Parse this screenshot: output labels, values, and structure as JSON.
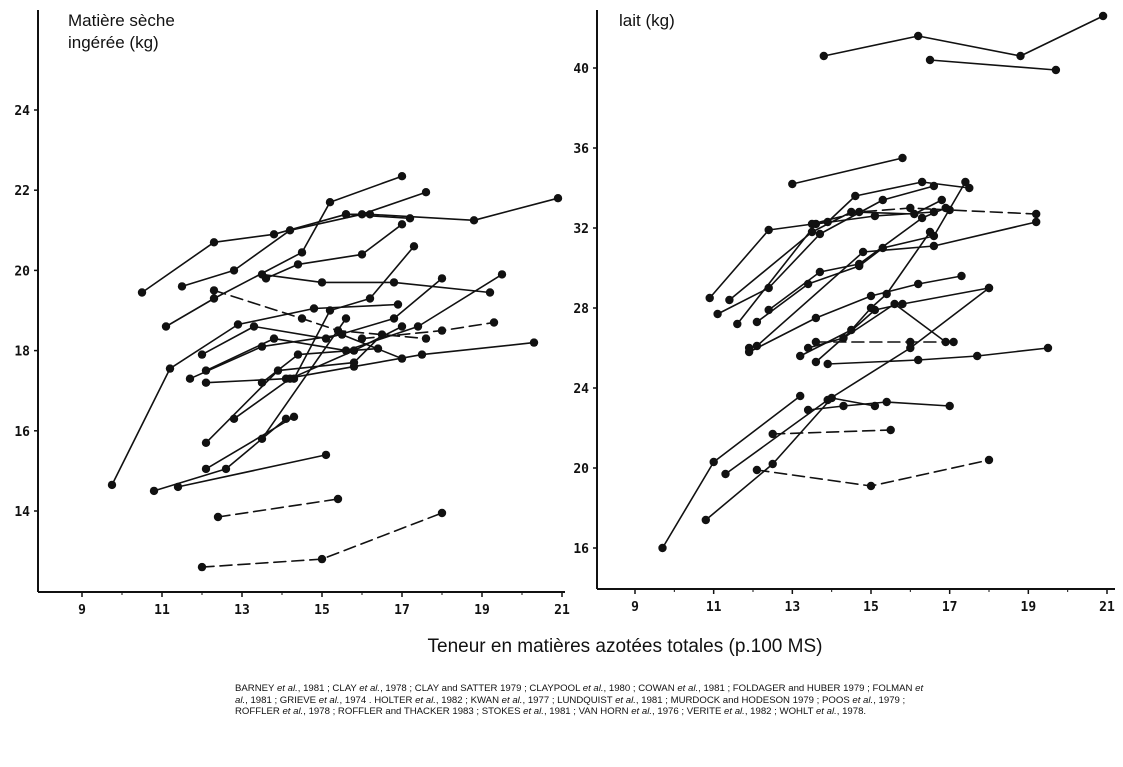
{
  "chart_data": [
    {
      "type": "line",
      "ylabel_lines": [
        "Matière sèche",
        "ingérée (kg)"
      ],
      "x_ticks": [
        9,
        11,
        13,
        15,
        17,
        19,
        21
      ],
      "y_ticks": [
        14,
        16,
        18,
        20,
        22,
        24
      ],
      "xlim": [
        8.0,
        21.0
      ],
      "ylim": [
        12.0,
        25.2
      ],
      "grid": false,
      "legend": "none",
      "series": [
        {
          "dash": false,
          "x": [
            9.75,
            11.2,
            12.9,
            14.8,
            16.9
          ],
          "y": [
            14.65,
            17.55,
            18.65,
            19.05,
            19.15
          ]
        },
        {
          "dash": false,
          "x": [
            10.5,
            12.3,
            13.8,
            15.6,
            17.2
          ],
          "y": [
            19.45,
            20.7,
            20.9,
            21.4,
            21.3
          ]
        },
        {
          "dash": false,
          "x": [
            11.1,
            12.3,
            14.5,
            15.2,
            17.0
          ],
          "y": [
            18.6,
            19.3,
            20.45,
            21.7,
            22.35
          ]
        },
        {
          "dash": false,
          "x": [
            11.5,
            12.8,
            14.2,
            16.0,
            17.6
          ],
          "y": [
            19.6,
            20.0,
            21.0,
            21.4,
            21.95
          ]
        },
        {
          "dash": false,
          "x": [
            15.6,
            16.2,
            18.8,
            20.9
          ],
          "y": [
            21.4,
            21.4,
            21.25,
            21.8
          ]
        },
        {
          "dash": false,
          "x": [
            13.6,
            14.4,
            16.0,
            17.0
          ],
          "y": [
            19.8,
            20.15,
            20.4,
            21.15
          ]
        },
        {
          "dash": true,
          "x": [
            12.3,
            14.5,
            15.4,
            17.6
          ],
          "y": [
            19.5,
            18.8,
            18.5,
            18.3
          ]
        },
        {
          "dash": false,
          "x": [
            13.5,
            15.0,
            16.8,
            19.2
          ],
          "y": [
            19.9,
            19.7,
            19.7,
            19.45
          ]
        },
        {
          "dash": false,
          "x": [
            14.3,
            15.2,
            16.2,
            17.3
          ],
          "y": [
            17.3,
            19.0,
            19.3,
            20.6
          ]
        },
        {
          "dash": false,
          "x": [
            12.0,
            13.3,
            15.1,
            16.8,
            18.0
          ],
          "y": [
            17.9,
            18.6,
            18.3,
            18.8,
            19.8
          ]
        },
        {
          "dash": false,
          "x": [
            12.1,
            13.8,
            15.6,
            17.4,
            19.5
          ],
          "y": [
            17.5,
            18.3,
            18.0,
            18.6,
            19.9
          ]
        },
        {
          "dash": false,
          "x": [
            11.7,
            13.5,
            15.5,
            17.0
          ],
          "y": [
            17.3,
            18.1,
            18.4,
            17.8
          ]
        },
        {
          "dash": true,
          "x": [
            16.0,
            18.0,
            19.3
          ],
          "y": [
            18.3,
            18.5,
            18.7
          ]
        },
        {
          "dash": false,
          "x": [
            12.1,
            14.1,
            15.8,
            17.5,
            20.3
          ],
          "y": [
            17.2,
            17.3,
            17.6,
            17.9,
            18.2
          ]
        },
        {
          "dash": false,
          "x": [
            12.1,
            13.9,
            15.8,
            16.5
          ],
          "y": [
            15.7,
            17.5,
            17.7,
            18.4
          ]
        },
        {
          "dash": false,
          "x": [
            13.5,
            14.4,
            16.4
          ],
          "y": [
            17.2,
            17.9,
            18.05
          ]
        },
        {
          "dash": false,
          "x": [
            12.8,
            14.2,
            15.8,
            17.0
          ],
          "y": [
            16.3,
            17.3,
            18.0,
            18.6
          ]
        },
        {
          "dash": false,
          "x": [
            13.5,
            15.6
          ],
          "y": [
            15.8,
            18.8
          ]
        },
        {
          "dash": false,
          "x": [
            12.1,
            14.3
          ],
          "y": [
            15.05,
            16.35
          ]
        },
        {
          "dash": false,
          "x": [
            10.8,
            12.6,
            14.1
          ],
          "y": [
            14.5,
            15.05,
            16.3
          ]
        },
        {
          "dash": false,
          "x": [
            11.4,
            15.1
          ],
          "y": [
            14.6,
            15.4
          ]
        },
        {
          "dash": true,
          "x": [
            12.4,
            15.4
          ],
          "y": [
            13.85,
            14.3
          ]
        },
        {
          "dash": true,
          "x": [
            12.0,
            15.0,
            18.0
          ],
          "y": [
            12.6,
            12.8,
            13.95
          ]
        }
      ]
    },
    {
      "type": "line",
      "ylabel_lines": [
        "lait (kg)"
      ],
      "x_ticks": [
        9,
        11,
        13,
        15,
        17,
        19,
        21
      ],
      "y_ticks": [
        16,
        20,
        24,
        28,
        32,
        36,
        40
      ],
      "xlim": [
        8.0,
        21.0
      ],
      "ylim": [
        14.0,
        43.0
      ],
      "grid": false,
      "legend": "none",
      "series": [
        {
          "dash": false,
          "x": [
            13.8,
            16.2,
            18.8,
            20.9
          ],
          "y": [
            40.6,
            41.6,
            40.6,
            42.6
          ]
        },
        {
          "dash": false,
          "x": [
            16.5,
            19.7
          ],
          "y": [
            40.4,
            39.9
          ]
        },
        {
          "dash": false,
          "x": [
            13.0,
            15.8
          ],
          "y": [
            34.2,
            35.5
          ]
        },
        {
          "dash": false,
          "x": [
            10.9,
            12.4,
            13.9,
            14.6,
            16.3,
            17.5
          ],
          "y": [
            28.5,
            31.9,
            32.3,
            33.6,
            34.3,
            34.0
          ]
        },
        {
          "dash": false,
          "x": [
            11.1,
            12.4,
            13.7,
            15.3,
            16.6
          ],
          "y": [
            27.7,
            29.0,
            31.7,
            33.4,
            34.1
          ]
        },
        {
          "dash": false,
          "x": [
            11.4,
            13.5,
            14.5,
            16.1,
            16.8
          ],
          "y": [
            28.4,
            31.8,
            32.8,
            32.7,
            33.4
          ]
        },
        {
          "dash": false,
          "x": [
            11.6,
            13.6,
            15.1,
            16.6
          ],
          "y": [
            27.2,
            32.2,
            32.6,
            32.8
          ]
        },
        {
          "dash": true,
          "x": [
            13.5,
            14.7,
            16.0,
            17.0,
            19.2
          ],
          "y": [
            32.2,
            32.8,
            33.0,
            32.9,
            32.7
          ]
        },
        {
          "dash": false,
          "x": [
            11.9,
            12.1,
            14.8,
            16.6,
            19.2
          ],
          "y": [
            26.0,
            26.1,
            30.8,
            31.1,
            32.3
          ]
        },
        {
          "dash": false,
          "x": [
            12.1,
            13.4,
            14.7,
            15.3,
            16.6,
            17.4
          ],
          "y": [
            27.3,
            29.2,
            30.1,
            31.0,
            31.6,
            34.3
          ]
        },
        {
          "dash": false,
          "x": [
            12.4,
            13.7,
            14.7,
            16.3,
            16.9
          ],
          "y": [
            27.9,
            29.8,
            30.2,
            32.5,
            33.0
          ]
        },
        {
          "dash": false,
          "x": [
            11.9,
            13.6,
            15.0,
            16.2,
            17.3
          ],
          "y": [
            25.8,
            27.5,
            28.6,
            29.2,
            29.6
          ]
        },
        {
          "dash": false,
          "x": [
            13.2,
            14.5,
            15.0,
            15.4,
            16.5
          ],
          "y": [
            25.6,
            26.9,
            28.0,
            28.7,
            31.8
          ]
        },
        {
          "dash": false,
          "x": [
            13.6,
            15.1,
            15.8,
            18.0
          ],
          "y": [
            25.3,
            27.9,
            28.2,
            29.0
          ]
        },
        {
          "dash": false,
          "x": [
            13.4,
            14.3,
            15.6,
            16.9
          ],
          "y": [
            26.0,
            26.5,
            28.2,
            26.3
          ]
        },
        {
          "dash": true,
          "x": [
            13.6,
            16.0,
            17.1
          ],
          "y": [
            26.3,
            26.3,
            26.3
          ]
        },
        {
          "dash": false,
          "x": [
            13.9,
            16.2,
            17.7,
            19.5
          ],
          "y": [
            25.2,
            25.4,
            25.6,
            26.0
          ]
        },
        {
          "dash": false,
          "x": [
            9.7,
            11.0,
            13.2
          ],
          "y": [
            16.0,
            20.3,
            23.6
          ]
        },
        {
          "dash": false,
          "x": [
            10.8,
            12.5,
            14.0,
            15.1
          ],
          "y": [
            17.4,
            20.2,
            23.5,
            23.1
          ]
        },
        {
          "dash": false,
          "x": [
            11.3,
            13.9,
            16.0,
            18.0
          ],
          "y": [
            19.7,
            23.4,
            26.0,
            29.0
          ]
        },
        {
          "dash": false,
          "x": [
            13.4,
            14.3,
            15.4,
            17.0
          ],
          "y": [
            22.9,
            23.1,
            23.3,
            23.1
          ]
        },
        {
          "dash": true,
          "x": [
            12.5,
            15.5
          ],
          "y": [
            21.7,
            21.9
          ]
        },
        {
          "dash": true,
          "x": [
            12.1,
            15.0,
            18.0
          ],
          "y": [
            19.9,
            19.1,
            20.4
          ]
        }
      ]
    }
  ],
  "xlabel": "Teneur en matières azotées totales (p.100 MS)",
  "references": [
    {
      "t": "BARNEY "
    },
    {
      "t": "et al.",
      "i": true
    },
    {
      "t": ", 1981 ; CLAY "
    },
    {
      "t": "et al.",
      "i": true
    },
    {
      "t": ", 1978 ; CLAY and SATTER 1979 ; CLAYPOOL "
    },
    {
      "t": "et al.",
      "i": true
    },
    {
      "t": ", 1980 ; COWAN "
    },
    {
      "t": "et al.",
      "i": true
    },
    {
      "t": ", 1981 ; FOLDAGER and HUBER 1979 ; FOLMAN "
    },
    {
      "t": "et al.",
      "i": true
    },
    {
      "t": ", 1981 ; GRIEVE "
    },
    {
      "t": "et al.",
      "i": true
    },
    {
      "t": ", 1974 . HOLTER "
    },
    {
      "t": "et al.",
      "i": true
    },
    {
      "t": ", 1982 ; KWAN "
    },
    {
      "t": "et al.",
      "i": true
    },
    {
      "t": ", 1977 ; LUNDQUIST "
    },
    {
      "t": "et al.",
      "i": true
    },
    {
      "t": ", 1981 ; MURDOCK and HODESON 1979 ; POOS "
    },
    {
      "t": "et al.",
      "i": true
    },
    {
      "t": ", 1979 ; ROFFLER "
    },
    {
      "t": "et al.",
      "i": true
    },
    {
      "t": ", 1978 ; ROFFLER and THACKER 1983 ; STOKES "
    },
    {
      "t": "et al.",
      "i": true
    },
    {
      "t": ", 1981 ; VAN HORN "
    },
    {
      "t": "et al.",
      "i": true
    },
    {
      "t": ", 1976 ; VERITE "
    },
    {
      "t": "et al.",
      "i": true
    },
    {
      "t": ", 1982 ; WOHLT "
    },
    {
      "t": "et al.",
      "i": true
    },
    {
      "t": ", 1978."
    }
  ]
}
